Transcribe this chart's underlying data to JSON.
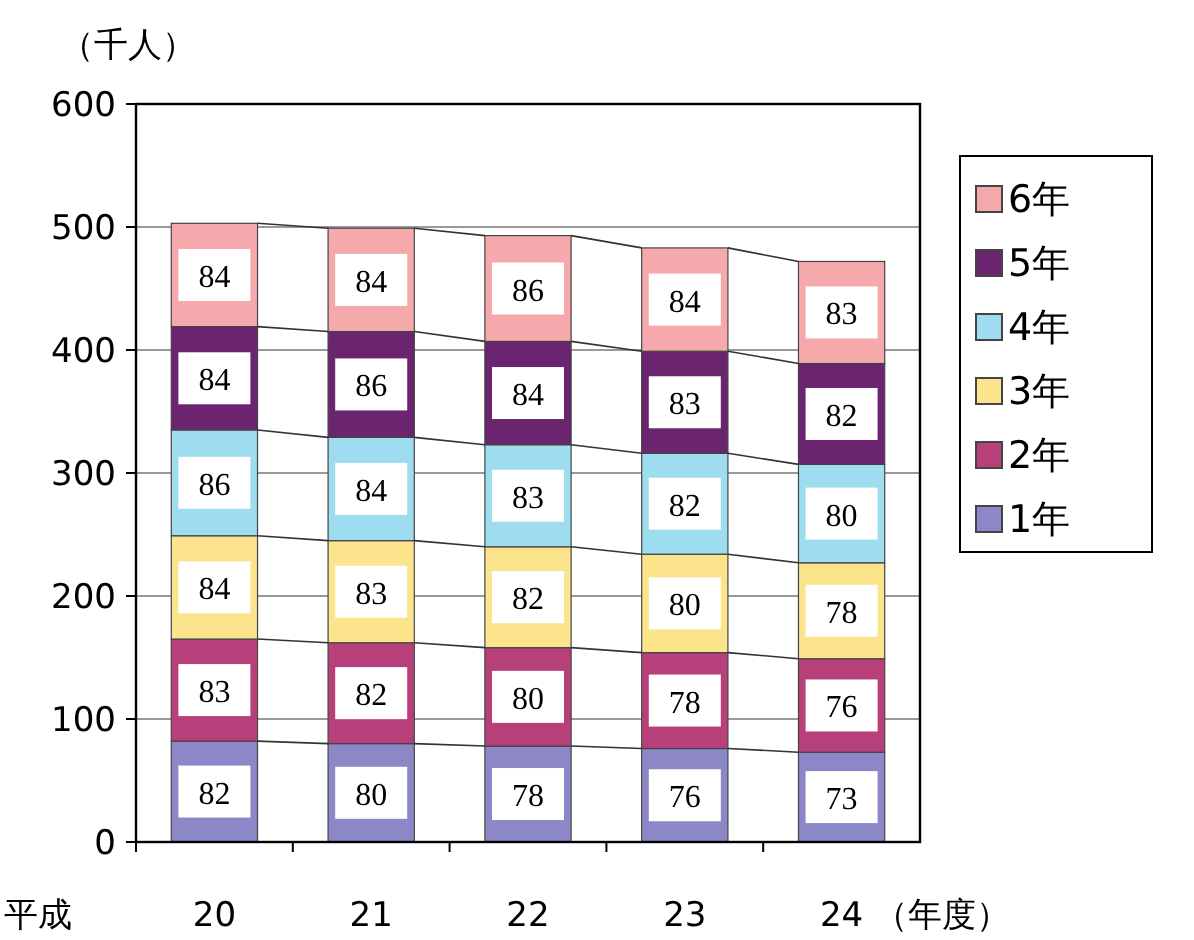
{
  "chart_data": {
    "type": "bar",
    "stacked": true,
    "ylabel": "（千人）",
    "xlabel": "（年度）",
    "annotations": [
      "平成"
    ],
    "categories": [
      "20",
      "21",
      "22",
      "23",
      "24"
    ],
    "ylim": [
      0,
      600
    ],
    "yticks": [
      0,
      100,
      200,
      300,
      400,
      500,
      600
    ],
    "grid": "y",
    "legend": "right",
    "data_labels": true,
    "series": [
      {
        "name": "1年",
        "color": "#8c88c8",
        "values": [
          82,
          80,
          78,
          76,
          73
        ]
      },
      {
        "name": "2年",
        "color": "#b8407a",
        "values": [
          83,
          82,
          80,
          78,
          76
        ]
      },
      {
        "name": "3年",
        "color": "#fbe48c",
        "values": [
          84,
          83,
          82,
          80,
          78
        ]
      },
      {
        "name": "4年",
        "color": "#9edcef",
        "values": [
          86,
          84,
          83,
          82,
          80
        ]
      },
      {
        "name": "5年",
        "color": "#6a2470",
        "values": [
          84,
          86,
          84,
          83,
          82
        ]
      },
      {
        "name": "6年",
        "color": "#f6a9ad",
        "values": [
          84,
          84,
          86,
          84,
          83
        ]
      }
    ]
  }
}
